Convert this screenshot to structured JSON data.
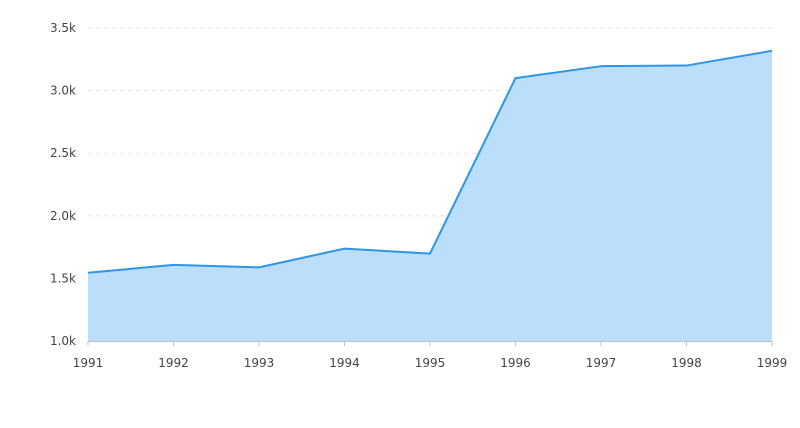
{
  "chart_data": {
    "type": "area",
    "x": [
      "1991",
      "1992",
      "1993",
      "1994",
      "1995",
      "1996",
      "1997",
      "1998",
      "1999"
    ],
    "series": [
      {
        "values": [
          1545,
          1608,
          1588,
          1738,
          1698,
          3100,
          3195,
          3200,
          3318
        ],
        "line_color": "#2f95e6",
        "fill_color": "#bbdefb"
      }
    ],
    "ylim": [
      1000,
      3500
    ],
    "yticks": [
      1000,
      1500,
      2000,
      2500,
      3000,
      3500
    ],
    "ytick_labels": [
      "1.0k",
      "1.5k",
      "2.0k",
      "2.5k",
      "3.0k",
      "3.5k"
    ],
    "xtick_labels": [
      "1991",
      "1992",
      "1993",
      "1994",
      "1995",
      "1996",
      "1997",
      "1998",
      "1999"
    ],
    "grid": "horizontal-dashed",
    "title": "",
    "xlabel": "",
    "ylabel": ""
  }
}
